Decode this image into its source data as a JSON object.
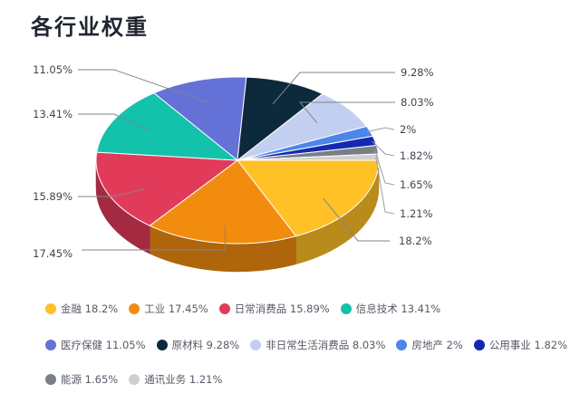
{
  "chart_data": {
    "type": "pie",
    "title": "各行业权重",
    "slices": [
      {
        "name": "金融",
        "value": 18.2,
        "label": "18.2%",
        "color": "#FFC125"
      },
      {
        "name": "工业",
        "value": 17.45,
        "label": "17.45%",
        "color": "#F28C0F"
      },
      {
        "name": "日常消费品",
        "value": 15.89,
        "label": "15.89%",
        "color": "#E23B5A"
      },
      {
        "name": "信息技术",
        "value": 13.41,
        "label": "13.41%",
        "color": "#12C2AA"
      },
      {
        "name": "医疗保健",
        "value": 11.05,
        "label": "11.05%",
        "color": "#6472D8"
      },
      {
        "name": "原材料",
        "value": 9.28,
        "label": "9.28%",
        "color": "#0C2A3C"
      },
      {
        "name": "非日常生活消费品",
        "value": 8.03,
        "label": "8.03%",
        "color": "#C3CFF0"
      },
      {
        "name": "房地产",
        "value": 2,
        "label": "2%",
        "color": "#4C86E8"
      },
      {
        "name": "公用事业",
        "value": 1.82,
        "label": "1.82%",
        "color": "#1428B0"
      },
      {
        "name": "能源",
        "value": 1.65,
        "label": "1.65%",
        "color": "#7A7F86"
      },
      {
        "name": "通讯业务",
        "value": 1.21,
        "label": "1.21%",
        "color": "#CFCFCF"
      }
    ],
    "legend_position": "bottom"
  },
  "legend_rows": [
    [
      {
        "text": "金融 18.2%",
        "color": "#FFC125"
      },
      {
        "text": "工业 17.45%",
        "color": "#F28C0F"
      },
      {
        "text": "日常消费品 15.89%",
        "color": "#E23B5A"
      },
      {
        "text": "信息技术 13.41%",
        "color": "#12C2AA"
      }
    ],
    [
      {
        "text": "医疗保健 11.05%",
        "color": "#6472D8"
      },
      {
        "text": "原材料 9.28%",
        "color": "#0C2A3C"
      },
      {
        "text": "非日常生活消费品 8.03%",
        "color": "#C3CFF0"
      },
      {
        "text": "房地产 2%",
        "color": "#4C86E8"
      },
      {
        "text": "公用事业 1.82%",
        "color": "#1428B0"
      }
    ],
    [
      {
        "text": "能源 1.65%",
        "color": "#7A7F86"
      },
      {
        "text": "通讯业务 1.21%",
        "color": "#CFCFCF"
      }
    ]
  ]
}
